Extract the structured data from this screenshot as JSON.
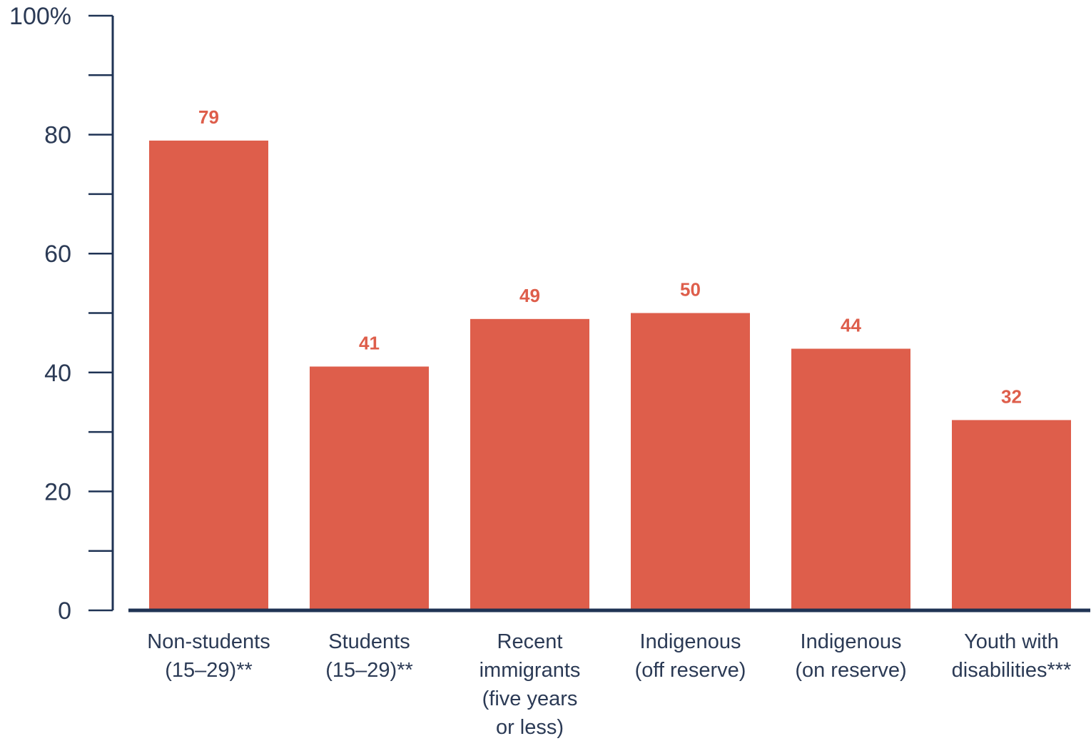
{
  "chart_data": {
    "type": "bar",
    "categories": [
      [
        "Non-students",
        "(15–29)**"
      ],
      [
        "Students",
        "(15–29)**"
      ],
      [
        "Recent",
        "immigrants",
        "(five years",
        "or less)"
      ],
      [
        "Indigenous",
        "(off reserve)"
      ],
      [
        "Indigenous",
        "(on reserve)"
      ],
      [
        "Youth with",
        "disabilities***"
      ]
    ],
    "values": [
      79,
      41,
      49,
      50,
      44,
      32
    ],
    "ylim": [
      0,
      100
    ],
    "yticks": [
      0,
      20,
      40,
      60,
      80,
      100
    ],
    "ytick_labels": [
      "0",
      "20",
      "40",
      "60",
      "80",
      "100%"
    ],
    "minor_tick_step": 10,
    "xlabel": "",
    "ylabel": "",
    "grid": false,
    "colors": {
      "bar": "#de5e4b",
      "value_label": "#de5e4b",
      "axis": "#1f3354",
      "text": "#2b3a55"
    }
  }
}
